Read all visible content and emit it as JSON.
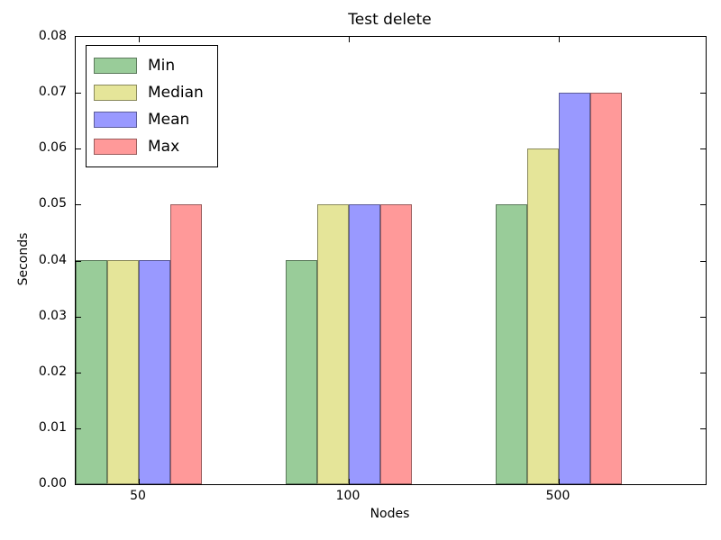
{
  "chart_data": {
    "type": "bar",
    "title": "Test delete",
    "xlabel": "Nodes",
    "ylabel": "Seconds",
    "categories": [
      "50",
      "100",
      "500"
    ],
    "series": [
      {
        "name": "Min",
        "color": "#99CC99",
        "values": [
          0.04,
          0.04,
          0.05
        ]
      },
      {
        "name": "Median",
        "color": "#E5E599",
        "values": [
          0.04,
          0.05,
          0.06
        ]
      },
      {
        "name": "Mean",
        "color": "#9999FF",
        "values": [
          0.04,
          0.05,
          0.07
        ]
      },
      {
        "name": "Max",
        "color": "#FF9999",
        "values": [
          0.05,
          0.05,
          0.07
        ]
      }
    ],
    "ylim": [
      0,
      0.08
    ],
    "ytick_labels": [
      "0.00",
      "0.01",
      "0.02",
      "0.03",
      "0.04",
      "0.05",
      "0.06",
      "0.07",
      "0.08"
    ],
    "xlim_units": [
      0,
      3
    ],
    "legend_position": "upper left",
    "grid": false,
    "bar_edge_color": "rgba(0,0,0,0.4)",
    "axis_color": "#000000",
    "background_color": "#FFFFFF"
  }
}
